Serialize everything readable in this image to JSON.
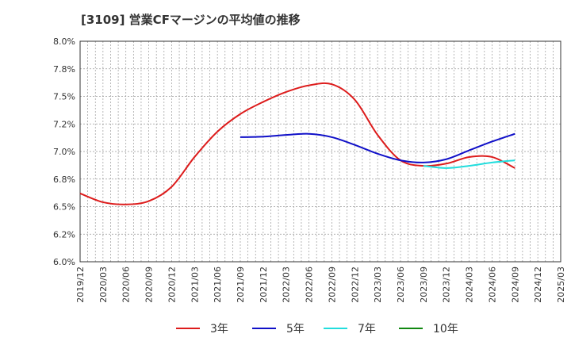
{
  "chart_data": {
    "type": "line",
    "title": "[3109]  営業CFマージンの平均値の推移",
    "xlabel": "",
    "ylabel": "",
    "x_ticks": [
      "2019/12",
      "2020/03",
      "2020/06",
      "2020/09",
      "2020/12",
      "2021/03",
      "2021/06",
      "2021/09",
      "2021/12",
      "2022/03",
      "2022/06",
      "2022/09",
      "2022/12",
      "2023/03",
      "2023/06",
      "2023/09",
      "2023/12",
      "2024/03",
      "2024/06",
      "2024/09",
      "2024/12",
      "2025/03"
    ],
    "y_ticks": [
      "6.0%",
      "6.2%",
      "6.5%",
      "6.8%",
      "7.0%",
      "7.2%",
      "7.5%",
      "7.8%",
      "8.0%"
    ],
    "ylim": [
      6.0,
      8.0
    ],
    "grid": true,
    "legend_position": "bottom",
    "series": [
      {
        "name": "3年",
        "color": "#dd1c1c",
        "points": [
          [
            "2019/12",
            6.62
          ],
          [
            "2020/03",
            6.54
          ],
          [
            "2020/06",
            6.52
          ],
          [
            "2020/09",
            6.55
          ],
          [
            "2020/12",
            6.68
          ],
          [
            "2021/03",
            6.95
          ],
          [
            "2021/06",
            7.18
          ],
          [
            "2021/09",
            7.34
          ],
          [
            "2021/12",
            7.45
          ],
          [
            "2022/03",
            7.54
          ],
          [
            "2022/06",
            7.6
          ],
          [
            "2022/09",
            7.61
          ],
          [
            "2022/12",
            7.47
          ],
          [
            "2023/03",
            7.15
          ],
          [
            "2023/06",
            6.92
          ],
          [
            "2023/09",
            6.87
          ],
          [
            "2023/12",
            6.89
          ],
          [
            "2024/03",
            6.95
          ],
          [
            "2024/06",
            6.95
          ],
          [
            "2024/09",
            6.85
          ]
        ]
      },
      {
        "name": "5年",
        "color": "#1010c8",
        "points": [
          [
            "2021/09",
            7.13
          ],
          [
            "2021/12",
            7.135
          ],
          [
            "2022/03",
            7.15
          ],
          [
            "2022/06",
            7.16
          ],
          [
            "2022/09",
            7.13
          ],
          [
            "2022/12",
            7.06
          ],
          [
            "2023/03",
            6.98
          ],
          [
            "2023/06",
            6.92
          ],
          [
            "2023/09",
            6.9
          ],
          [
            "2023/12",
            6.93
          ],
          [
            "2024/03",
            7.01
          ],
          [
            "2024/06",
            7.09
          ],
          [
            "2024/09",
            7.16
          ]
        ]
      },
      {
        "name": "7年",
        "color": "#22dddd",
        "points": [
          [
            "2023/09",
            6.87
          ],
          [
            "2023/12",
            6.85
          ],
          [
            "2024/03",
            6.87
          ],
          [
            "2024/06",
            6.9
          ],
          [
            "2024/09",
            6.92
          ]
        ]
      },
      {
        "name": "10年",
        "color": "#118811",
        "points": []
      }
    ]
  }
}
